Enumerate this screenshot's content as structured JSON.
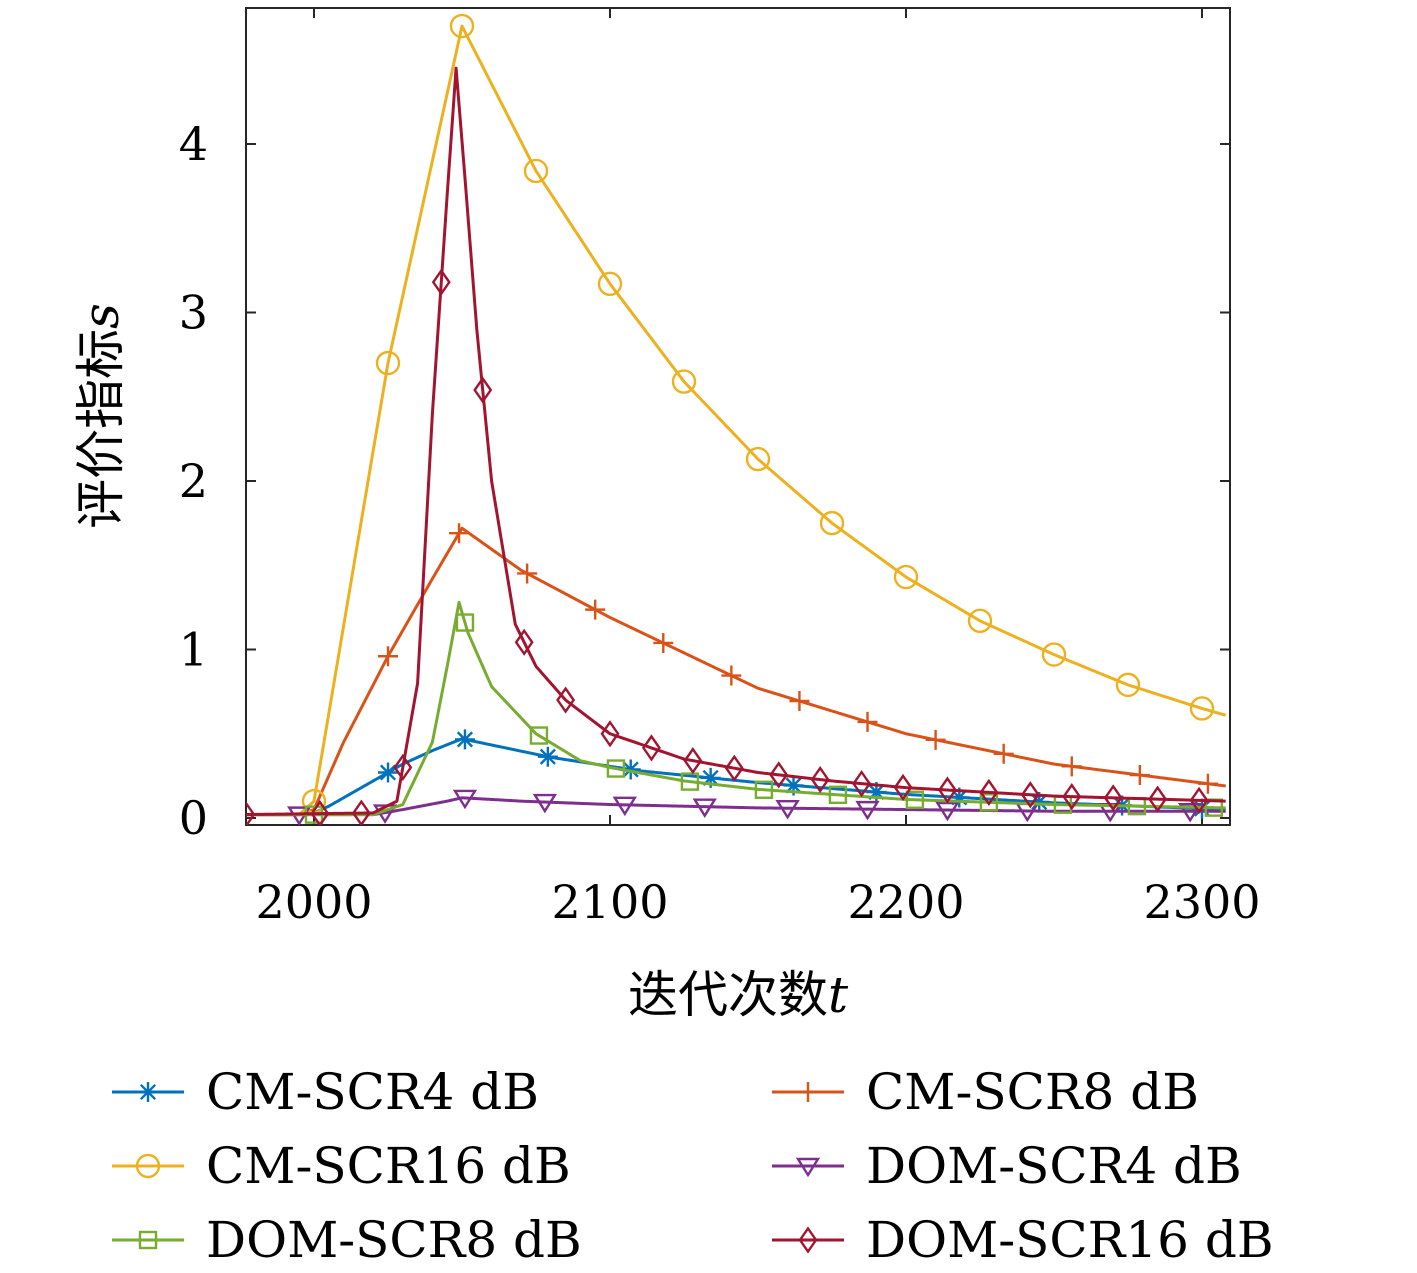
{
  "chart_data": {
    "type": "line",
    "title": "",
    "xlabel": "迭代次数",
    "xlabel_var": "t",
    "ylabel": "评价指标",
    "ylabel_var": "s",
    "xlim": [
      1975,
      2308
    ],
    "ylim": [
      0,
      4.8
    ],
    "xticks": [
      2000,
      2100,
      2200,
      2300
    ],
    "yticks": [
      0,
      1,
      2,
      3,
      4
    ],
    "grid": false,
    "legend_position": "bottom",
    "legend_columns": 2,
    "series": [
      {
        "name": "CM-SCR4 dB",
        "color": "#0072BD",
        "marker": "asterisk",
        "x": [
          1975,
          1995,
          2000,
          2005,
          2012,
          2020,
          2025,
          2030,
          2040,
          2050,
          2080,
          2110,
          2150,
          2200,
          2250,
          2308
        ],
        "y": [
          0.02,
          0.02,
          0.03,
          0.07,
          0.14,
          0.22,
          0.27,
          0.32,
          0.4,
          0.47,
          0.36,
          0.28,
          0.21,
          0.14,
          0.09,
          0.05
        ],
        "marker_x": [
          2025,
          2051,
          2079,
          2107,
          2134,
          2162,
          2190,
          2218,
          2245,
          2273,
          2300
        ]
      },
      {
        "name": "CM-SCR8 dB",
        "color": "#D95319",
        "marker": "plus",
        "x": [
          1975,
          1995,
          2000,
          2010,
          2025,
          2040,
          2050,
          2070,
          2100,
          2150,
          2200,
          2250,
          2308
        ],
        "y": [
          0.02,
          0.02,
          0.05,
          0.45,
          0.96,
          1.42,
          1.72,
          1.47,
          1.19,
          0.77,
          0.5,
          0.32,
          0.19
        ],
        "marker_x": [
          2025,
          2049,
          2072,
          2095,
          2118,
          2141,
          2164,
          2187,
          2210,
          2233,
          2256,
          2279,
          2302
        ]
      },
      {
        "name": "CM-SCR16 dB",
        "color": "#EDB120",
        "marker": "circle",
        "x": [
          1975,
          1995,
          2000,
          2025,
          2050,
          2075,
          2100,
          2125,
          2150,
          2175,
          2200,
          2225,
          2250,
          2275,
          2300,
          2308
        ],
        "y": [
          0.02,
          0.02,
          0.1,
          2.7,
          4.7,
          3.84,
          3.17,
          2.59,
          2.13,
          1.75,
          1.43,
          1.17,
          0.97,
          0.79,
          0.65,
          0.61
        ],
        "marker_x": [
          2000,
          2025,
          2050,
          2075,
          2100,
          2125,
          2150,
          2175,
          2200,
          2225,
          2250,
          2275,
          2300
        ]
      },
      {
        "name": "DOM-SCR4 dB",
        "color": "#7E2F8E",
        "marker": "triangle-down",
        "x": [
          1975,
          2020,
          2030,
          2045,
          2050,
          2070,
          2100,
          2150,
          2200,
          2250,
          2308
        ],
        "y": [
          0.02,
          0.02,
          0.05,
          0.1,
          0.12,
          0.1,
          0.08,
          0.06,
          0.05,
          0.04,
          0.04
        ],
        "marker_x": [
          1995,
          2024,
          2051,
          2078,
          2105,
          2132,
          2160,
          2187,
          2214,
          2241,
          2269,
          2296
        ]
      },
      {
        "name": "DOM-SCR8 dB",
        "color": "#77AC30",
        "marker": "square",
        "x": [
          1975,
          2020,
          2030,
          2040,
          2045,
          2049,
          2052,
          2060,
          2075,
          2090,
          2100,
          2125,
          2150,
          2200,
          2250,
          2308
        ],
        "y": [
          0.02,
          0.02,
          0.08,
          0.45,
          0.9,
          1.28,
          1.1,
          0.78,
          0.5,
          0.34,
          0.3,
          0.22,
          0.17,
          0.11,
          0.08,
          0.06
        ],
        "marker_x": [
          2000,
          2051,
          2076,
          2102,
          2127,
          2152,
          2177,
          2203,
          2228,
          2253,
          2278,
          2304
        ]
      },
      {
        "name": "DOM-SCR16 dB",
        "color": "#A2142F",
        "marker": "diamond",
        "x": [
          1975,
          2020,
          2028,
          2035,
          2040,
          2045,
          2048,
          2051,
          2055,
          2060,
          2068,
          2075,
          2085,
          2100,
          2125,
          2150,
          2175,
          2200,
          2250,
          2308
        ],
        "y": [
          0.02,
          0.03,
          0.1,
          0.8,
          2.4,
          3.7,
          4.45,
          3.8,
          2.9,
          2.0,
          1.15,
          0.9,
          0.7,
          0.5,
          0.35,
          0.27,
          0.22,
          0.18,
          0.13,
          0.1
        ],
        "marker_x": [
          1977,
          2002,
          2016,
          2030,
          2043,
          2057,
          2071,
          2085,
          2100,
          2114,
          2128,
          2142,
          2157,
          2171,
          2185,
          2199,
          2214,
          2228,
          2242,
          2256,
          2270,
          2285,
          2299
        ]
      }
    ]
  }
}
